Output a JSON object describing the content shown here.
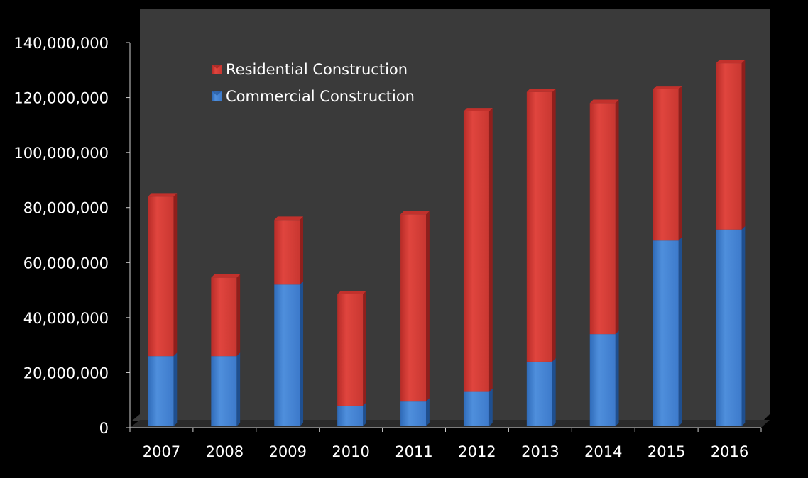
{
  "chart_data": {
    "type": "bar",
    "stacked": true,
    "three_d": true,
    "categories": [
      "2007",
      "2008",
      "2009",
      "2010",
      "2011",
      "2012",
      "2013",
      "2014",
      "2015",
      "2016"
    ],
    "series": [
      {
        "name": "Commercial Construction",
        "color": "#4a86d4",
        "values": [
          26000000,
          26000000,
          52000000,
          8000000,
          9500000,
          13000000,
          24000000,
          34000000,
          68000000,
          72000000
        ]
      },
      {
        "name": "Residential Construction",
        "color": "#d9403a",
        "values": [
          58000000,
          28500000,
          23500000,
          40500000,
          68000000,
          102000000,
          98000000,
          84000000,
          55000000,
          60500000
        ]
      }
    ],
    "ylim": [
      0,
      140000000
    ],
    "yticks": [
      "0",
      "20,000,000",
      "40,000,000",
      "60,000,000",
      "80,000,000",
      "100,000,000",
      "120,000,000",
      "140,000,000"
    ],
    "legend": {
      "position": "top-left",
      "entries": [
        "Residential Construction",
        "Commercial Construction"
      ]
    },
    "grid": false,
    "colors": {
      "page_background": "#000000",
      "plot_background": "#3a3a3a",
      "text": "#ffffff",
      "axis": "#cfcfcf"
    }
  }
}
